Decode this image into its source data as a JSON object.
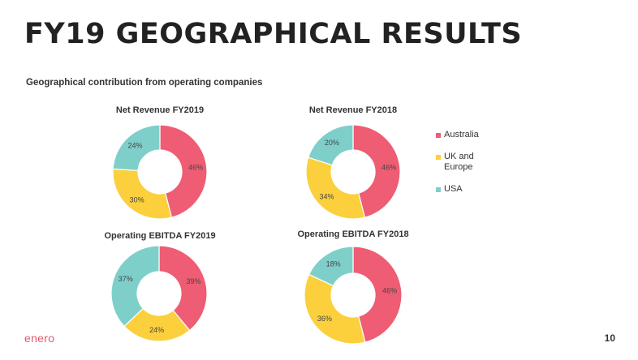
{
  "page": {
    "title": "FY19 GEOGRAPHICAL RESULTS",
    "subtitle": "Geographical contribution from operating companies",
    "logo": "enero",
    "page_number": "10"
  },
  "colors": {
    "Australia": "#ee5d73",
    "UK and Europe": "#fbd03c",
    "USA": "#7ecfca"
  },
  "legend": [
    "Australia",
    "UK and Europe",
    "USA"
  ],
  "chart_data": [
    {
      "type": "pie",
      "title": "Net Revenue FY2019",
      "categories": [
        "Australia",
        "UK and Europe",
        "USA"
      ],
      "values": [
        46,
        30,
        24
      ],
      "labels": [
        "46%",
        "30%",
        "24%"
      ]
    },
    {
      "type": "pie",
      "title": "Net Revenue FY2018",
      "categories": [
        "Australia",
        "UK and Europe",
        "USA"
      ],
      "values": [
        46,
        34,
        20
      ],
      "labels": [
        "46%",
        "34%",
        "20%"
      ]
    },
    {
      "type": "pie",
      "title": "Operating EBITDA FY2019",
      "categories": [
        "Australia",
        "UK and Europe",
        "USA"
      ],
      "values": [
        39,
        24,
        37
      ],
      "labels": [
        "39%",
        "24%",
        "37%"
      ]
    },
    {
      "type": "pie",
      "title": "Operating EBITDA FY2018",
      "categories": [
        "Australia",
        "UK and Europe",
        "USA"
      ],
      "values": [
        46,
        36,
        18
      ],
      "labels": [
        "46%",
        "36%",
        "18%"
      ]
    }
  ]
}
